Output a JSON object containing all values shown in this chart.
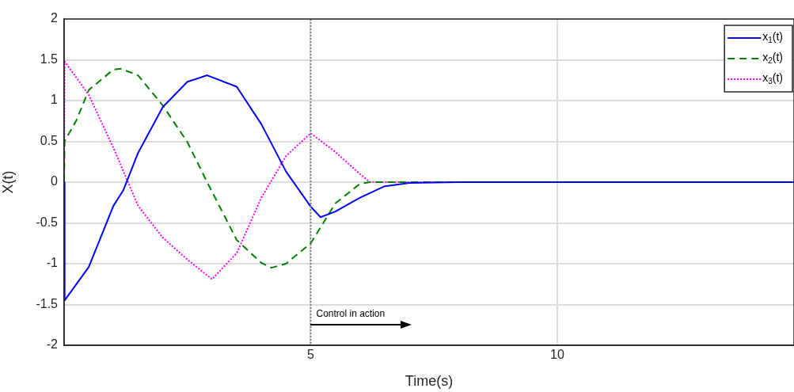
{
  "chart_data": {
    "type": "line",
    "xlabel": "Time(s)",
    "ylabel": "X(t)",
    "xlim": [
      0,
      14.8
    ],
    "xticks": [
      5,
      10
    ],
    "ylim": [
      -2,
      2
    ],
    "yticks": [
      -2,
      -1.5,
      -1,
      -0.5,
      0,
      0.5,
      1,
      1.5,
      2
    ],
    "grid": true,
    "legend": "top right",
    "marker": "none",
    "series": [
      {
        "name": "x$_{1}$(t)",
        "color": "#0000ff",
        "line_style": "solid",
        "x": [
          0,
          0.01,
          0.5,
          1,
          1.2,
          1.5,
          2,
          2.5,
          2.9,
          3.5,
          4,
          4.5,
          5,
          5.2,
          5.5,
          6,
          6.5,
          7,
          8,
          10,
          14.8
        ],
        "values": [
          0,
          -1.45,
          -1.04,
          -0.29,
          -0.1,
          0.36,
          0.92,
          1.23,
          1.31,
          1.17,
          0.71,
          0.13,
          -0.3,
          -0.43,
          -0.36,
          -0.19,
          -0.05,
          -0.01,
          0,
          0,
          0
        ]
      },
      {
        "name": "x$_{2}$(t)",
        "color": "#008000",
        "line_style": "dashed",
        "x": [
          0,
          0.01,
          0.25,
          0.5,
          1,
          1.15,
          1.5,
          2,
          2.5,
          2.9,
          3.5,
          4,
          4.2,
          4.5,
          5,
          5.5,
          6,
          6.2,
          8,
          10,
          14.8
        ],
        "values": [
          0,
          0.5,
          0.76,
          1.13,
          1.38,
          1.39,
          1.31,
          0.94,
          0.49,
          0,
          -0.71,
          -0.99,
          -1.05,
          -1,
          -0.75,
          -0.26,
          -0.02,
          0,
          0,
          0,
          0
        ]
      },
      {
        "name": "x$_{3}$(t)",
        "color": "#ff00ff",
        "line_style": "dotted",
        "x": [
          0,
          0.01,
          0.5,
          1,
          1.5,
          2,
          2.5,
          3,
          3.5,
          4,
          4.5,
          5,
          5.5,
          6,
          6.2,
          8,
          10,
          14.8
        ],
        "values": [
          0,
          1.48,
          1.07,
          0.42,
          -0.29,
          -0.68,
          -0.95,
          -1.19,
          -0.87,
          -0.19,
          0.32,
          0.6,
          0.37,
          0.1,
          0,
          0,
          0,
          0
        ]
      }
    ],
    "ref_lines": [
      {
        "axis": "x",
        "value": 5,
        "color": "#808080",
        "line_style": "dotted"
      }
    ],
    "annotations": [
      {
        "text": "Control in action",
        "x": 5,
        "y": -1.65
      }
    ]
  }
}
